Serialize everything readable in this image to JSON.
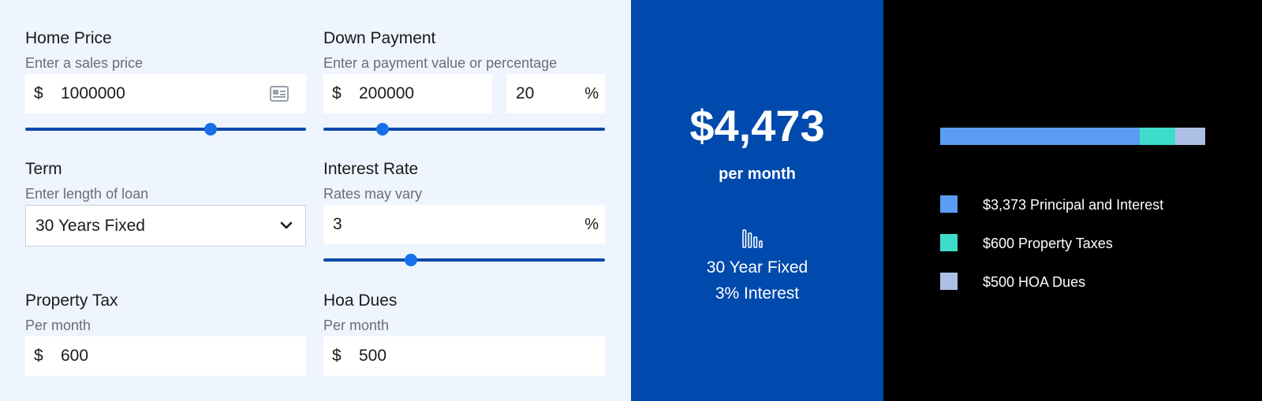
{
  "colors": {
    "accent": "#004aad",
    "principal": "#5b9cf5",
    "taxes": "#3edccb",
    "hoa": "#aebfe6"
  },
  "home_price": {
    "title": "Home Price",
    "hint": "Enter a sales price",
    "currency": "$",
    "value": "1000000",
    "icon": "id-card-icon",
    "slider_fraction": 0.66
  },
  "down_payment": {
    "title": "Down Payment",
    "hint": "Enter a payment value or percentage",
    "currency": "$",
    "value": "200000",
    "percent_value": "20",
    "percent_symbol": "%",
    "slider_fraction": 0.21
  },
  "term": {
    "title": "Term",
    "hint": "Enter length of loan",
    "selected": "30 Years Fixed",
    "icon": "chevron-down-icon"
  },
  "interest_rate": {
    "title": "Interest Rate",
    "hint": "Rates may vary",
    "value": "3",
    "percent_symbol": "%",
    "slider_fraction": 0.31
  },
  "property_tax": {
    "title": "Property Tax",
    "hint": "Per month",
    "currency": "$",
    "value": "600"
  },
  "hoa_dues": {
    "title": "Hoa Dues",
    "hint": "Per month",
    "currency": "$",
    "value": "500"
  },
  "summary": {
    "monthly_payment": "$4,473",
    "per_label": "per month",
    "icon": "bar-chart-icon",
    "term_label": "30 Year Fixed",
    "rate_label": "3% Interest"
  },
  "breakdown": {
    "items": [
      {
        "label": "$3,373 Principal and Interest",
        "amount": 3373,
        "color": "#5b9cf5"
      },
      {
        "label": "$600 Property Taxes",
        "amount": 600,
        "color": "#3edccb"
      },
      {
        "label": "$500 HOA Dues",
        "amount": 500,
        "color": "#aebfe6"
      }
    ]
  }
}
